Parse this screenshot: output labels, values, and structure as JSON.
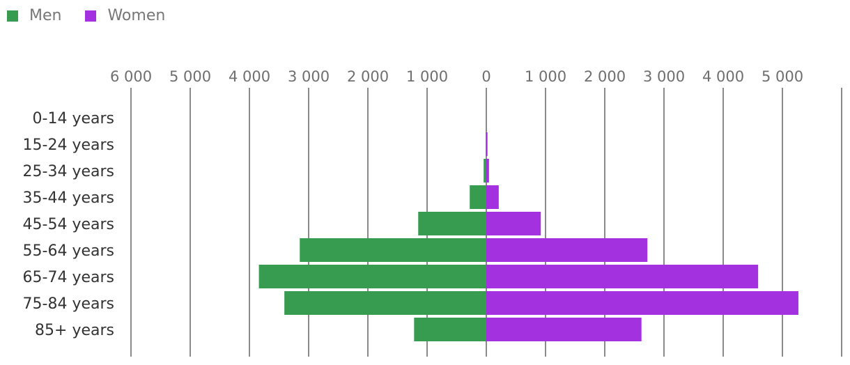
{
  "colors": {
    "men": "#379c4f",
    "women": "#a431e0",
    "grid": "#8a8a8a"
  },
  "legend": {
    "men_label": "Men",
    "women_label": "Women"
  },
  "chart_data": {
    "type": "bar",
    "orientation": "horizontal-diverging",
    "categories": [
      "0-14 years",
      "15-24 years",
      "25-34 years",
      "35-44 years",
      "45-54 years",
      "55-64 years",
      "65-74 years",
      "75-84 years",
      "85+ years"
    ],
    "series": [
      {
        "name": "Men",
        "values": [
          0,
          10,
          45,
          280,
          1150,
          3150,
          3840,
          3410,
          1220
        ]
      },
      {
        "name": "Women",
        "values": [
          0,
          20,
          45,
          210,
          920,
          2720,
          4590,
          5270,
          2620
        ]
      }
    ],
    "xlim": [
      -6000,
      6000
    ],
    "ticks": [
      "6 000",
      "5 000",
      "4 000",
      "3 000",
      "2 000",
      "1 000",
      "0",
      "1 000",
      "2 000",
      "3 000",
      "4 000",
      "5 000"
    ],
    "legend_position": "top-left",
    "grid": true
  }
}
